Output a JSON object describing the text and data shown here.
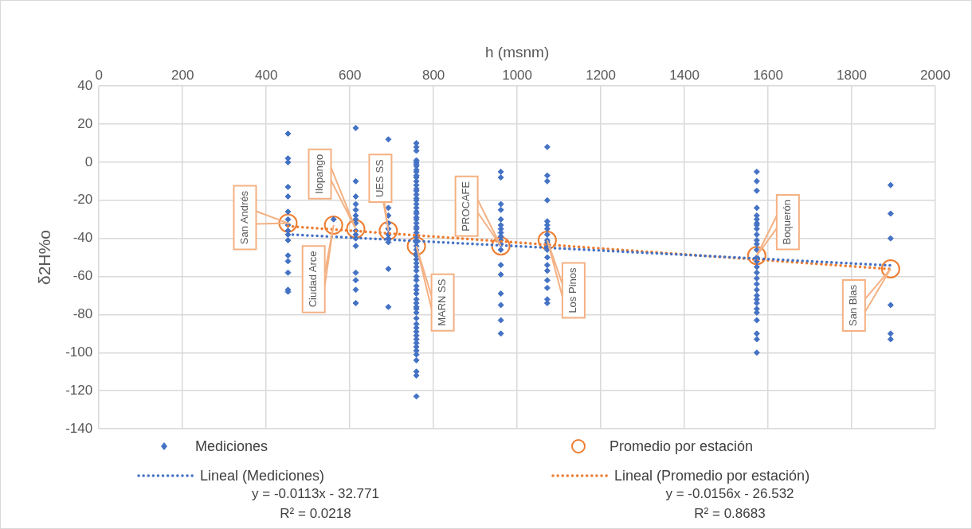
{
  "chart_data": {
    "type": "scatter",
    "xlabel": "h (msnm)",
    "ylabel": "δ2H%o",
    "xlim": [
      0,
      2000
    ],
    "xticks": [
      0,
      200,
      400,
      600,
      800,
      1000,
      1200,
      1400,
      1600,
      1800,
      2000
    ],
    "ylim": [
      -140,
      40
    ],
    "yticks": [
      -140,
      -120,
      -100,
      -80,
      -60,
      -40,
      -20,
      0,
      20,
      40
    ],
    "grid": true,
    "legend": "bottom",
    "series": [
      {
        "name": "Mediciones",
        "type": "scatter",
        "color": "#4472c4",
        "marker": "diamond",
        "x": [
          452,
          452,
          452,
          452,
          452,
          452,
          452,
          452,
          452,
          452,
          452,
          452,
          452,
          452,
          452,
          452,
          561,
          614,
          614,
          614,
          614,
          614,
          614,
          614,
          614,
          614,
          614,
          614,
          614,
          614,
          614,
          614,
          614,
          692,
          692,
          692,
          692,
          692,
          692,
          692,
          692,
          692,
          692,
          759,
          759,
          759,
          759,
          759,
          759,
          759,
          759,
          759,
          759,
          759,
          759,
          759,
          759,
          759,
          759,
          759,
          759,
          759,
          759,
          759,
          759,
          759,
          759,
          759,
          759,
          759,
          759,
          759,
          759,
          759,
          759,
          759,
          759,
          759,
          759,
          759,
          759,
          759,
          759,
          759,
          759,
          759,
          759,
          759,
          759,
          759,
          759,
          759,
          759,
          759,
          759,
          759,
          759,
          759,
          759,
          759,
          759,
          759,
          759,
          759,
          759,
          759,
          961,
          961,
          961,
          961,
          961,
          961,
          961,
          961,
          961,
          961,
          961,
          961,
          961,
          961,
          961,
          961,
          961,
          961,
          1072,
          1072,
          1072,
          1072,
          1072,
          1072,
          1072,
          1072,
          1072,
          1072,
          1072,
          1072,
          1072,
          1072,
          1072,
          1072,
          1072,
          1072,
          1072,
          1573,
          1573,
          1573,
          1573,
          1573,
          1573,
          1573,
          1573,
          1573,
          1573,
          1573,
          1573,
          1573,
          1573,
          1573,
          1573,
          1573,
          1573,
          1573,
          1573,
          1573,
          1573,
          1573,
          1573,
          1573,
          1573,
          1573,
          1573,
          1573,
          1893,
          1893,
          1893,
          1893,
          1893,
          1893
        ],
        "values": [
          15,
          2,
          0,
          -13,
          -18,
          -26,
          -30,
          -33,
          -36,
          -38,
          -41,
          -49,
          -52,
          -58,
          -67,
          -68,
          -30,
          18,
          -10,
          -18,
          -22,
          -25,
          -28,
          -30,
          -32,
          -36,
          -38,
          -40,
          -44,
          -58,
          -62,
          -67,
          -74,
          12,
          -24,
          -28,
          -32,
          -35,
          -38,
          -40,
          -42,
          -56,
          -76,
          10,
          8,
          6,
          1,
          0,
          -1,
          -2,
          -4,
          -5,
          -7,
          -8,
          -10,
          -12,
          -14,
          -15,
          -17,
          -19,
          -20,
          -22,
          -24,
          -26,
          -27,
          -29,
          -30,
          -32,
          -34,
          -35,
          -37,
          -39,
          -41,
          -42,
          -44,
          -46,
          -48,
          -49,
          -51,
          -53,
          -55,
          -57,
          -60,
          -62,
          -65,
          -67,
          -69,
          -72,
          -74,
          -76,
          -77,
          -79,
          -82,
          -85,
          -87,
          -89,
          -91,
          -93,
          -95,
          -97,
          -99,
          -101,
          -104,
          -110,
          -112,
          -123,
          -5,
          -8,
          -22,
          -25,
          -30,
          -33,
          -35,
          -37,
          -39,
          -41,
          -43,
          -46,
          -54,
          -59,
          -69,
          -75,
          -83,
          -90,
          8,
          -7,
          -10,
          -20,
          -31,
          -33,
          -35,
          -38,
          -41,
          -42,
          -44,
          -46,
          -50,
          -54,
          -57,
          -62,
          -66,
          -72,
          -74,
          -5,
          -10,
          -15,
          -24,
          -28,
          -30,
          -32,
          -33,
          -35,
          -38,
          -41,
          -43,
          -46,
          -50,
          -52,
          -55,
          -58,
          -61,
          -64,
          -67,
          -70,
          -72,
          -74,
          -77,
          -79,
          -83,
          -90,
          -93,
          -100,
          -12,
          -27,
          -40,
          -75,
          -90,
          -93
        ]
      },
      {
        "name": "Promedio por estación",
        "type": "scatter",
        "color": "#ed7d31",
        "marker": "circle",
        "x": [
          452,
          561,
          614,
          692,
          759,
          961,
          1072,
          1573,
          1893
        ],
        "values": [
          -32,
          -33,
          -35,
          -36,
          -44,
          -44,
          -41,
          -49,
          -56
        ]
      },
      {
        "name": "Lineal (Mediciones)",
        "type": "line",
        "color": "#4472c4",
        "marker": "none",
        "line_style": "dotted",
        "x": [
          452,
          1893
        ],
        "values": [
          -37.9,
          -54.2
        ]
      },
      {
        "name": "Lineal (Promedio por estación)",
        "type": "line",
        "color": "#ed7d31",
        "marker": "none",
        "line_style": "dotted",
        "x": [
          452,
          1893
        ],
        "values": [
          -33.6,
          -56.1
        ]
      }
    ],
    "annotations": [
      "San Andrés",
      "Ciudad Arce",
      "Ilopango",
      "UES SS",
      "MARN SS",
      "PROCAFE",
      "Los Pinos",
      "Boquerón",
      "San Blas",
      "y = -0.0113x - 32.771\nR² = 0.0218",
      "y = -0.0156x - 26.532\nR² = 0.8683"
    ]
  }
}
